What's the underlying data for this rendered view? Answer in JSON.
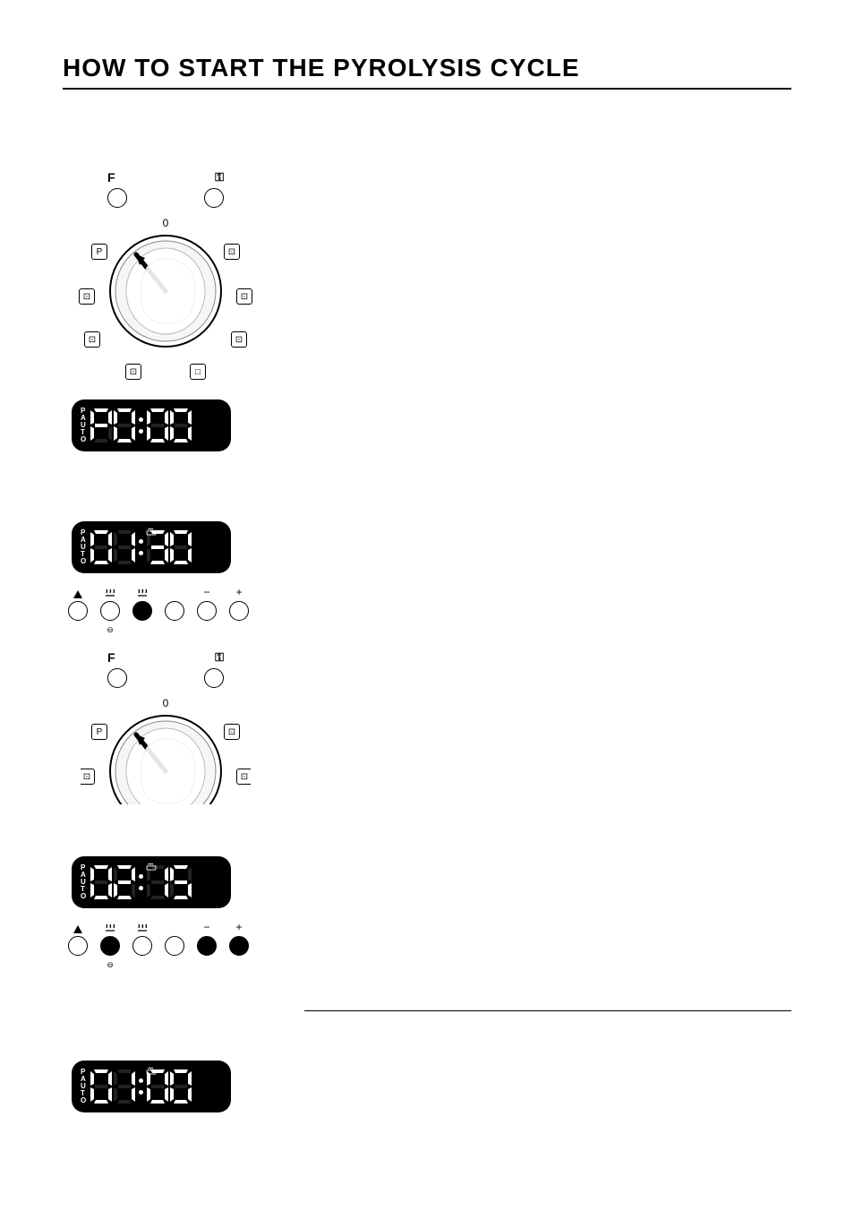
{
  "title": "HOW TO START THE PYROLYSIS CYCLE",
  "dial": {
    "top_left_label": "F",
    "top_right_label": "⚿",
    "zero_label": "0",
    "positions": {
      "p": "P",
      "fan_tl": "⊡",
      "fan_bl": "⊡",
      "bottom_l": "⊡",
      "bottom_r": "□",
      "br": "⊡",
      "r": "⊡",
      "tr": "⊡"
    }
  },
  "lcd1": {
    "left": "P\nA\nU\nT\nO",
    "text": "P0:00",
    "show_pot": false
  },
  "lcd2": {
    "left": "P\nA\nU\nT\nO",
    "text": "01:30",
    "show_pot": true
  },
  "lcd3": {
    "left": "P\nA\nU\nT\nO",
    "text": "02:15",
    "show_pot": true
  },
  "lcd4": {
    "left": "P\nA\nU\nT\nO",
    "text": "01:00",
    "show_pot": true
  },
  "buttons1": {
    "symbols": [
      "△",
      "♨",
      "♨",
      "",
      "−",
      "+"
    ],
    "filled": [
      false,
      false,
      true,
      false,
      false,
      false
    ],
    "sub": [
      "",
      "⊖",
      "",
      "",
      "",
      ""
    ]
  },
  "buttons2": {
    "symbols": [
      "△",
      "♨",
      "♨",
      "",
      "−",
      "+"
    ],
    "filled": [
      false,
      true,
      false,
      false,
      true,
      true
    ],
    "sub": [
      "",
      "⊖",
      "",
      "",
      "",
      ""
    ]
  },
  "colors": {
    "bg": "#ffffff",
    "ink": "#000000",
    "lcd_bg": "#000000",
    "lcd_fg": "#ffffff"
  }
}
